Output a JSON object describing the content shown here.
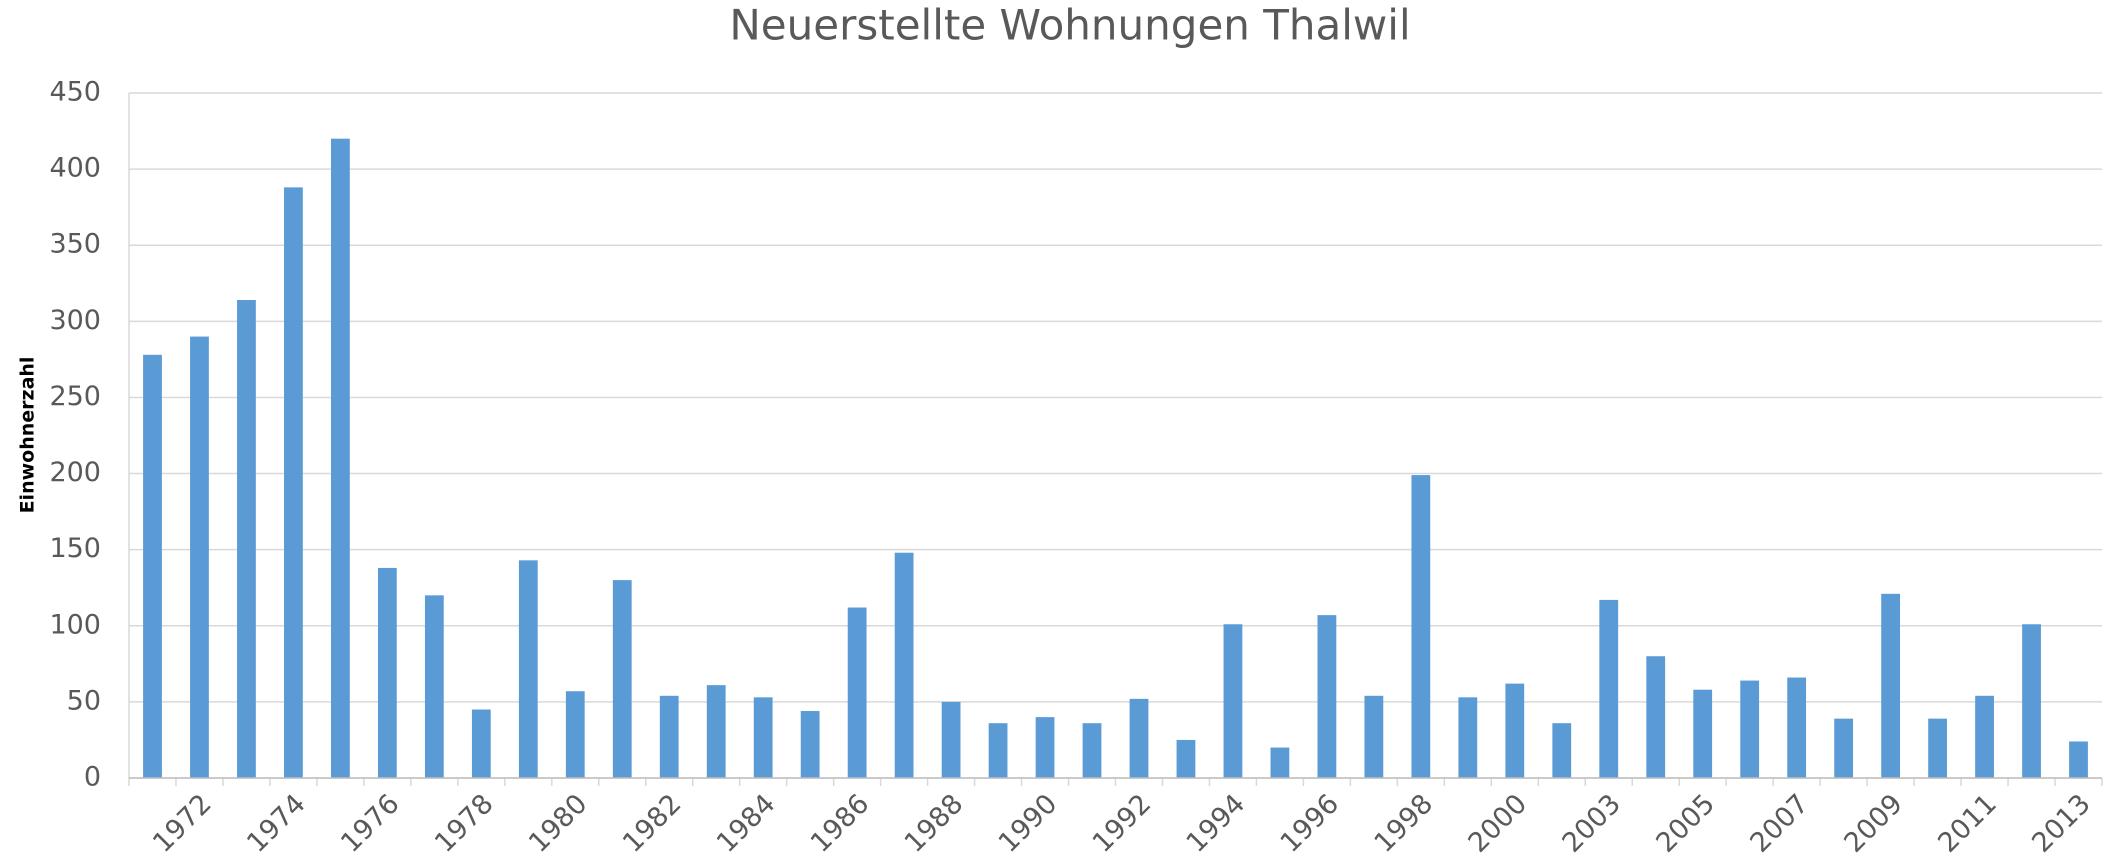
{
  "chart_data": {
    "type": "bar",
    "title": "Neuerstellte Wohnungen Thalwil",
    "y_label": "Einwohnerzahl",
    "categories": [
      null,
      "1972",
      null,
      "1974",
      null,
      "1976",
      null,
      "1978",
      null,
      "1980",
      null,
      "1982",
      null,
      "1984",
      null,
      "1986",
      null,
      "1988",
      null,
      "1990",
      null,
      "1992",
      null,
      "1994",
      null,
      "1996",
      null,
      "1998",
      null,
      "2000",
      null,
      "2003",
      null,
      "2005",
      null,
      "2007",
      null,
      "2009",
      null,
      "2011",
      null,
      "2013"
    ],
    "values": [
      278,
      290,
      314,
      388,
      420,
      138,
      120,
      45,
      143,
      57,
      130,
      54,
      61,
      53,
      44,
      112,
      148,
      50,
      36,
      40,
      36,
      52,
      25,
      101,
      20,
      107,
      54,
      199,
      53,
      62,
      36,
      117,
      80,
      58,
      64,
      66,
      39,
      121,
      39,
      54,
      101,
      24
    ],
    "color": "#5b9bd5",
    "ylim": [
      0,
      450
    ],
    "yticks": [
      0,
      50,
      100,
      150,
      200,
      250,
      300,
      350,
      400,
      450
    ],
    "grid": true
  }
}
